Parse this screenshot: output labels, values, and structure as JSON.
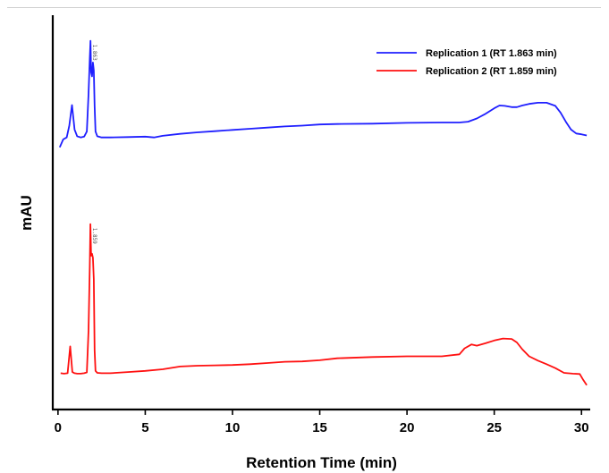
{
  "chart_data": {
    "type": "line",
    "title": "",
    "xlabel": "Retention Time (min)",
    "ylabel": "mAU",
    "xlim": [
      -0.3,
      30.5
    ],
    "ylim": [
      0,
      100
    ],
    "x_ticks": [
      0,
      5,
      10,
      15,
      20,
      25,
      30
    ],
    "x_tick_labels": [
      "0",
      "5",
      "10",
      "15",
      "20",
      "25",
      "30"
    ],
    "grid": false,
    "legend_position": "top-right",
    "y_ticks_labeled": false,
    "series": [
      {
        "name": "Replication 1 (RT 1.863 min)",
        "color": "#1f1fff",
        "peak_label": "1.863",
        "peak_label_x": 1.86,
        "x": [
          0.1,
          0.3,
          0.5,
          0.65,
          0.8,
          0.95,
          1.1,
          1.3,
          1.5,
          1.65,
          1.75,
          1.82,
          1.863,
          1.9,
          1.95,
          2.0,
          2.05,
          2.1,
          2.15,
          2.25,
          2.5,
          3.0,
          4.0,
          5.0,
          5.5,
          6.0,
          7.0,
          8.0,
          9.0,
          10.0,
          11.0,
          12.0,
          13.0,
          14.0,
          15.0,
          16.0,
          18.0,
          20.0,
          22.0,
          23.0,
          23.5,
          24.0,
          24.5,
          25.0,
          25.3,
          25.6,
          26.0,
          26.3,
          26.6,
          27.0,
          27.5,
          28.0,
          28.5,
          28.8,
          29.1,
          29.4,
          29.7,
          30.0,
          30.3
        ],
        "y": [
          66.5,
          68.5,
          69.0,
          72.0,
          77.2,
          71.0,
          69.3,
          69.0,
          69.2,
          70.5,
          80.0,
          89.0,
          93.5,
          85.5,
          84.5,
          88.0,
          86.0,
          77.0,
          70.5,
          69.3,
          69.0,
          69.0,
          69.1,
          69.2,
          69.0,
          69.4,
          69.9,
          70.3,
          70.6,
          70.9,
          71.2,
          71.5,
          71.8,
          72.0,
          72.3,
          72.4,
          72.5,
          72.7,
          72.8,
          72.8,
          73.0,
          73.8,
          75.0,
          76.4,
          77.1,
          77.0,
          76.7,
          76.7,
          77.1,
          77.5,
          77.8,
          77.8,
          77.0,
          75.3,
          73.0,
          71.0,
          70.0,
          69.8,
          69.5
        ]
      },
      {
        "name": "Replication 2 (RT 1.859 min)",
        "color": "#ff1010",
        "peak_label": "1.859",
        "peak_label_x": 1.86,
        "x": [
          0.15,
          0.35,
          0.55,
          0.7,
          0.82,
          0.95,
          1.1,
          1.3,
          1.5,
          1.65,
          1.75,
          1.82,
          1.859,
          1.9,
          1.95,
          2.0,
          2.05,
          2.1,
          2.15,
          2.25,
          2.5,
          3.0,
          4.0,
          5.0,
          6.0,
          7.0,
          8.0,
          9.0,
          10.0,
          11.0,
          12.0,
          13.0,
          14.0,
          15.0,
          16.0,
          18.0,
          20.0,
          22.0,
          23.0,
          23.3,
          23.7,
          24.0,
          24.5,
          25.0,
          25.5,
          26.0,
          26.3,
          26.6,
          27.0,
          27.5,
          28.0,
          28.5,
          29.0,
          29.5,
          29.9,
          30.1,
          30.3
        ],
        "y": [
          9.2,
          9.1,
          9.2,
          16.0,
          9.5,
          9.2,
          9.1,
          9.1,
          9.2,
          9.4,
          20.0,
          36.5,
          47.0,
          39.0,
          39.5,
          38.5,
          33.0,
          15.0,
          9.8,
          9.3,
          9.2,
          9.2,
          9.5,
          9.8,
          10.2,
          10.9,
          11.1,
          11.2,
          11.3,
          11.5,
          11.8,
          12.1,
          12.2,
          12.5,
          13.0,
          13.3,
          13.5,
          13.5,
          14.0,
          15.5,
          16.5,
          16.2,
          16.8,
          17.5,
          18.0,
          17.9,
          17.0,
          15.3,
          13.5,
          12.4,
          11.5,
          10.5,
          9.3,
          9.1,
          9.0,
          7.5,
          6.2
        ]
      }
    ]
  }
}
